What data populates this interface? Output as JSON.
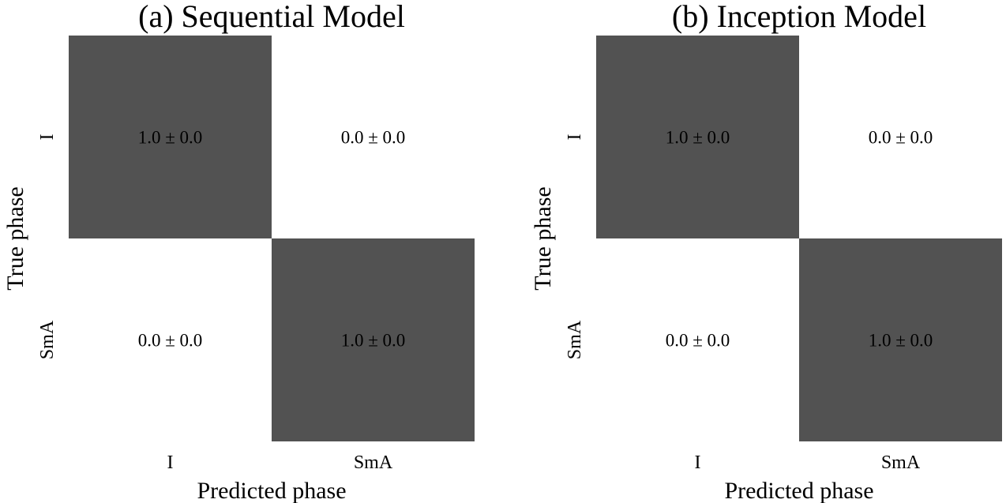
{
  "chart_data": [
    {
      "type": "heatmap",
      "title": "(a) Sequential Model",
      "xlabel": "Predicted phase",
      "ylabel": "True phase",
      "x_categories": [
        "I",
        "SmA"
      ],
      "y_categories": [
        "I",
        "SmA"
      ],
      "values": [
        [
          1.0,
          0.0
        ],
        [
          0.0,
          1.0
        ]
      ],
      "cell_labels": [
        [
          "1.0 ± 0.0",
          "0.0 ± 0.0"
        ],
        [
          "0.0 ± 0.0",
          "1.0 ± 0.0"
        ]
      ],
      "colors": {
        "high": "#525252",
        "low": "#ffffff"
      },
      "grid": false
    },
    {
      "type": "heatmap",
      "title": "(b) Inception Model",
      "xlabel": "Predicted phase",
      "ylabel": "True phase",
      "x_categories": [
        "I",
        "SmA"
      ],
      "y_categories": [
        "I",
        "SmA"
      ],
      "values": [
        [
          1.0,
          0.0
        ],
        [
          0.0,
          1.0
        ]
      ],
      "cell_labels": [
        [
          "1.0 ± 0.0",
          "0.0 ± 0.0"
        ],
        [
          "0.0 ± 0.0",
          "1.0 ± 0.0"
        ]
      ],
      "colors": {
        "high": "#525252",
        "low": "#ffffff"
      },
      "grid": false
    }
  ]
}
